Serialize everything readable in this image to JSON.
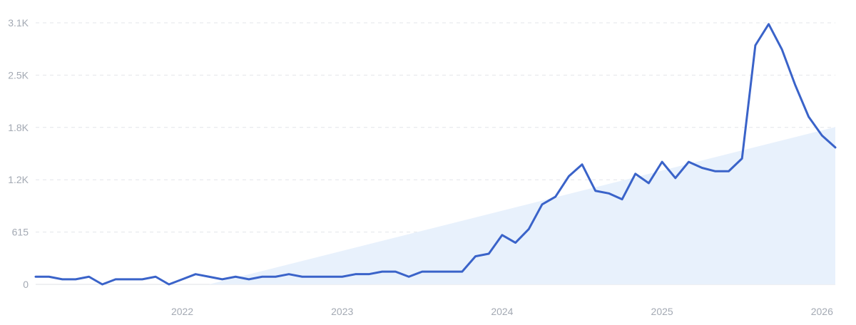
{
  "chart_data": {
    "type": "line",
    "title": "",
    "xlabel": "",
    "ylabel": "",
    "y_ticks": [
      {
        "value": 0,
        "label": "0"
      },
      {
        "value": 615,
        "label": "615"
      },
      {
        "value": 1230,
        "label": "1.2K"
      },
      {
        "value": 1845,
        "label": "1.8K"
      },
      {
        "value": 2460,
        "label": "2.5K"
      },
      {
        "value": 3075,
        "label": "3.1K"
      }
    ],
    "x_ticks": [
      {
        "value": "2022-01",
        "label": "2022"
      },
      {
        "value": "2023-01",
        "label": "2023"
      },
      {
        "value": "2024-01",
        "label": "2024"
      },
      {
        "value": "2025-01",
        "label": "2025"
      },
      {
        "value": "2026-01",
        "label": "2026"
      }
    ],
    "xlim": [
      "2021-02",
      "2026-02"
    ],
    "ylim": [
      0,
      3075
    ],
    "grid": true,
    "colors": {
      "line": "#3a63c9",
      "trend_fill": "#e8f1fc",
      "grid": "#e3e6ea",
      "tick_text": "#a3a9b3"
    },
    "trend": {
      "start": {
        "x": "2022-03",
        "y": 0
      },
      "end": {
        "x": "2026-02",
        "y": 1850
      }
    },
    "series": [
      {
        "x": [
          "2021-02",
          "2021-03",
          "2021-04",
          "2021-05",
          "2021-06",
          "2021-07",
          "2021-08",
          "2021-09",
          "2021-10",
          "2021-11",
          "2021-12",
          "2022-01",
          "2022-02",
          "2022-03",
          "2022-04",
          "2022-05",
          "2022-06",
          "2022-07",
          "2022-08",
          "2022-09",
          "2022-10",
          "2022-11",
          "2022-12",
          "2023-01",
          "2023-02",
          "2023-03",
          "2023-04",
          "2023-05",
          "2023-06",
          "2023-07",
          "2023-08",
          "2023-09",
          "2023-10",
          "2023-11",
          "2023-12",
          "2024-01",
          "2024-02",
          "2024-03",
          "2024-04",
          "2024-05",
          "2024-06",
          "2024-07",
          "2024-08",
          "2024-09",
          "2024-10",
          "2024-11",
          "2024-12",
          "2025-01",
          "2025-02",
          "2025-03",
          "2025-04",
          "2025-05",
          "2025-06",
          "2025-07",
          "2025-08",
          "2025-09",
          "2025-10",
          "2025-11",
          "2025-12",
          "2026-01",
          "2026-02"
        ],
        "values": [
          90,
          90,
          60,
          60,
          90,
          0,
          60,
          60,
          60,
          90,
          0,
          60,
          120,
          90,
          60,
          90,
          60,
          90,
          90,
          120,
          90,
          90,
          90,
          90,
          120,
          120,
          150,
          150,
          90,
          150,
          150,
          150,
          150,
          330,
          360,
          580,
          490,
          650,
          940,
          1030,
          1270,
          1410,
          1100,
          1070,
          1000,
          1300,
          1190,
          1440,
          1250,
          1440,
          1370,
          1330,
          1330,
          1480,
          2810,
          3060,
          2760,
          2340,
          1970,
          1750,
          1610
        ]
      }
    ]
  }
}
